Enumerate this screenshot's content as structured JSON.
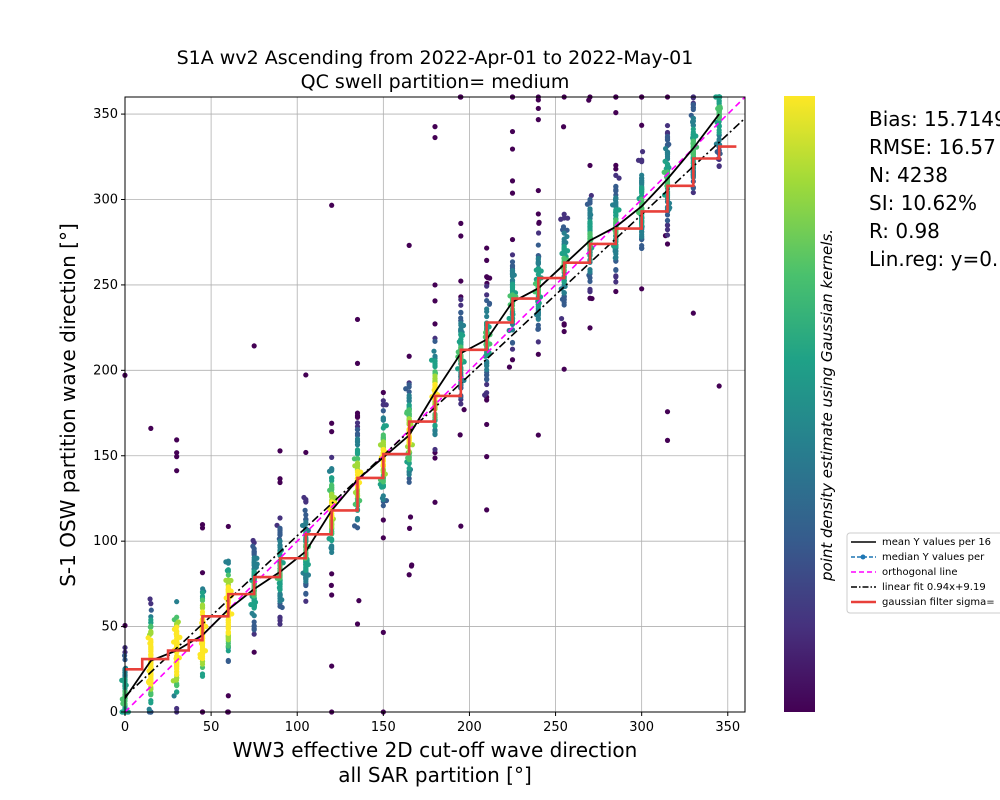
{
  "chart_data": {
    "type": "scatter",
    "title_line1": "S1A wv2 Ascending from 2022-Apr-01 to 2022-May-01",
    "title_line2": "QC swell partition= medium",
    "xlabel_line1": "WW3 effective 2D cut-off wave direction",
    "xlabel_line2": "all SAR partition [°]",
    "ylabel": "S-1 OSW partition wave direction [°]",
    "xlim": [
      0,
      360
    ],
    "ylim": [
      0,
      360
    ],
    "xticks": [
      "0",
      "50",
      "100",
      "150",
      "200",
      "250",
      "300",
      "350"
    ],
    "yticks": [
      "0",
      "50",
      "100",
      "150",
      "200",
      "250",
      "300",
      "350"
    ],
    "grid": true,
    "colorbar_label": "point density estimate using Gaussian kernels.",
    "stats": [
      "Bias: 15.7149",
      "RMSE: 16.57",
      "N: 4238",
      "SI: 10.62%",
      "R: 0.98",
      "Lin.reg: y=0."
    ],
    "legend": {
      "placement": "right",
      "entries": [
        {
          "label": "mean Y values per 16",
          "color": "#000000",
          "style": "solid"
        },
        {
          "label": "median Y values per",
          "color": "#1f77b4",
          "style": "dashed-marker"
        },
        {
          "label": "orthogonal line",
          "color": "#ff00ff",
          "style": "dashed"
        },
        {
          "label": "linear fit 0.94x+9.19",
          "color": "#000000",
          "style": "dashdot"
        },
        {
          "label": "gaussian filter sigma=",
          "color": "#e8403a",
          "style": "thick"
        }
      ]
    },
    "bins_x": [
      0,
      15,
      30,
      45,
      60,
      75,
      90,
      105,
      120,
      135,
      150,
      165,
      180,
      195,
      210,
      225,
      240,
      255,
      270,
      285,
      300,
      315,
      330,
      345
    ],
    "mean_y": [
      8,
      30,
      36,
      45,
      60,
      72,
      82,
      94,
      118,
      136,
      149,
      162,
      187,
      210,
      218,
      240,
      248,
      262,
      276,
      284,
      296,
      312,
      330,
      350
    ],
    "linear_fit": {
      "slope": 0.94,
      "intercept": 9.19
    },
    "gaussian_x": [
      0,
      10,
      10,
      25,
      25,
      37,
      37,
      45,
      45,
      60,
      60,
      75,
      75,
      90,
      90,
      105,
      105,
      120,
      120,
      135,
      135,
      150,
      150,
      165,
      165,
      180,
      180,
      195,
      195,
      210,
      210,
      225,
      225,
      240,
      240,
      255,
      255,
      270,
      270,
      285,
      285,
      300,
      300,
      315,
      315,
      330,
      330,
      345,
      345,
      355
    ],
    "gaussian_y": [
      25,
      25,
      31,
      31,
      36,
      36,
      42,
      42,
      56,
      56,
      69,
      69,
      79,
      79,
      90,
      90,
      104,
      104,
      118,
      118,
      137,
      137,
      151,
      151,
      170,
      170,
      185,
      185,
      212,
      212,
      228,
      228,
      242,
      242,
      254,
      254,
      263,
      263,
      274,
      274,
      283,
      283,
      293,
      293,
      308,
      308,
      324,
      324,
      331,
      331
    ],
    "colormap": [
      "#440154",
      "#46327e",
      "#365c8d",
      "#277f8e",
      "#1fa187",
      "#4ac16d",
      "#a0da39",
      "#fde725"
    ]
  }
}
